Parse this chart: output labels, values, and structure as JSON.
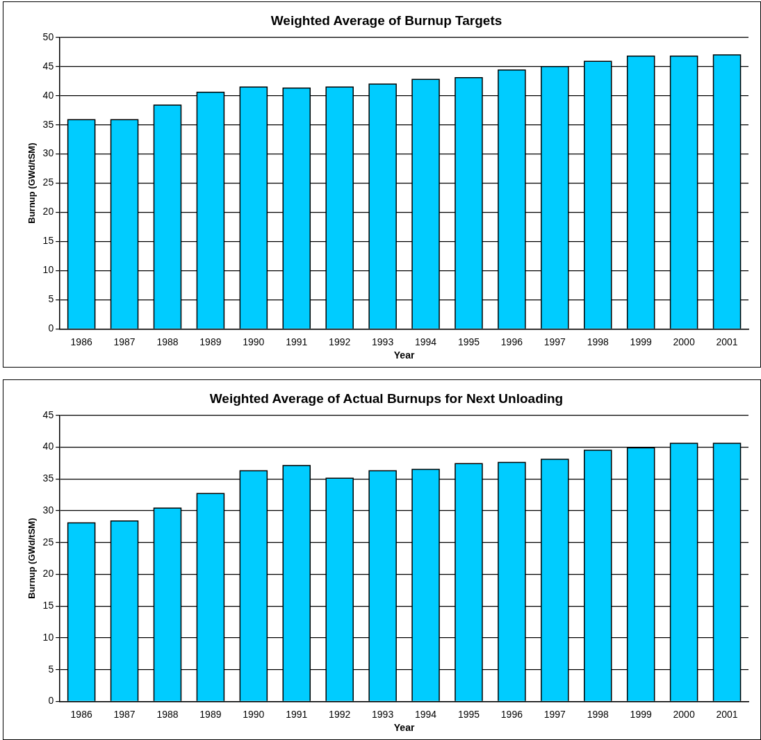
{
  "chart_data": [
    {
      "type": "bar",
      "title": "Weighted Average of Burnup Targets",
      "xlabel": "Year",
      "ylabel": "Burnup (GWd/tSM)",
      "categories": [
        "1986",
        "1987",
        "1988",
        "1989",
        "1990",
        "1991",
        "1992",
        "1993",
        "1994",
        "1995",
        "1996",
        "1997",
        "1998",
        "1999",
        "2000",
        "2001"
      ],
      "values": [
        35.9,
        35.9,
        38.4,
        40.6,
        41.5,
        41.3,
        41.5,
        42.0,
        42.8,
        43.1,
        44.4,
        45.0,
        45.9,
        46.8,
        46.8,
        47.0
      ],
      "color": "#00ccff",
      "ylim": [
        0,
        50
      ],
      "yticks": [
        0,
        5,
        10,
        15,
        20,
        25,
        30,
        35,
        40,
        45,
        50
      ],
      "grid": "y",
      "legend": false
    },
    {
      "type": "bar",
      "title": "Weighted Average of Actual Burnups for Next Unloading",
      "xlabel": "Year",
      "ylabel": "Burnup (GWd/tSM)",
      "categories": [
        "1986",
        "1987",
        "1988",
        "1989",
        "1990",
        "1991",
        "1992",
        "1993",
        "1994",
        "1995",
        "1996",
        "1997",
        "1998",
        "1999",
        "2000",
        "2001"
      ],
      "values": [
        28.1,
        28.4,
        30.4,
        32.7,
        36.3,
        37.1,
        35.1,
        36.3,
        36.5,
        37.4,
        37.6,
        38.1,
        39.5,
        39.9,
        40.6,
        40.6
      ],
      "color": "#00ccff",
      "ylim": [
        0,
        45
      ],
      "yticks": [
        0,
        5,
        10,
        15,
        20,
        25,
        30,
        35,
        40,
        45
      ],
      "grid": "y",
      "legend": false
    }
  ]
}
